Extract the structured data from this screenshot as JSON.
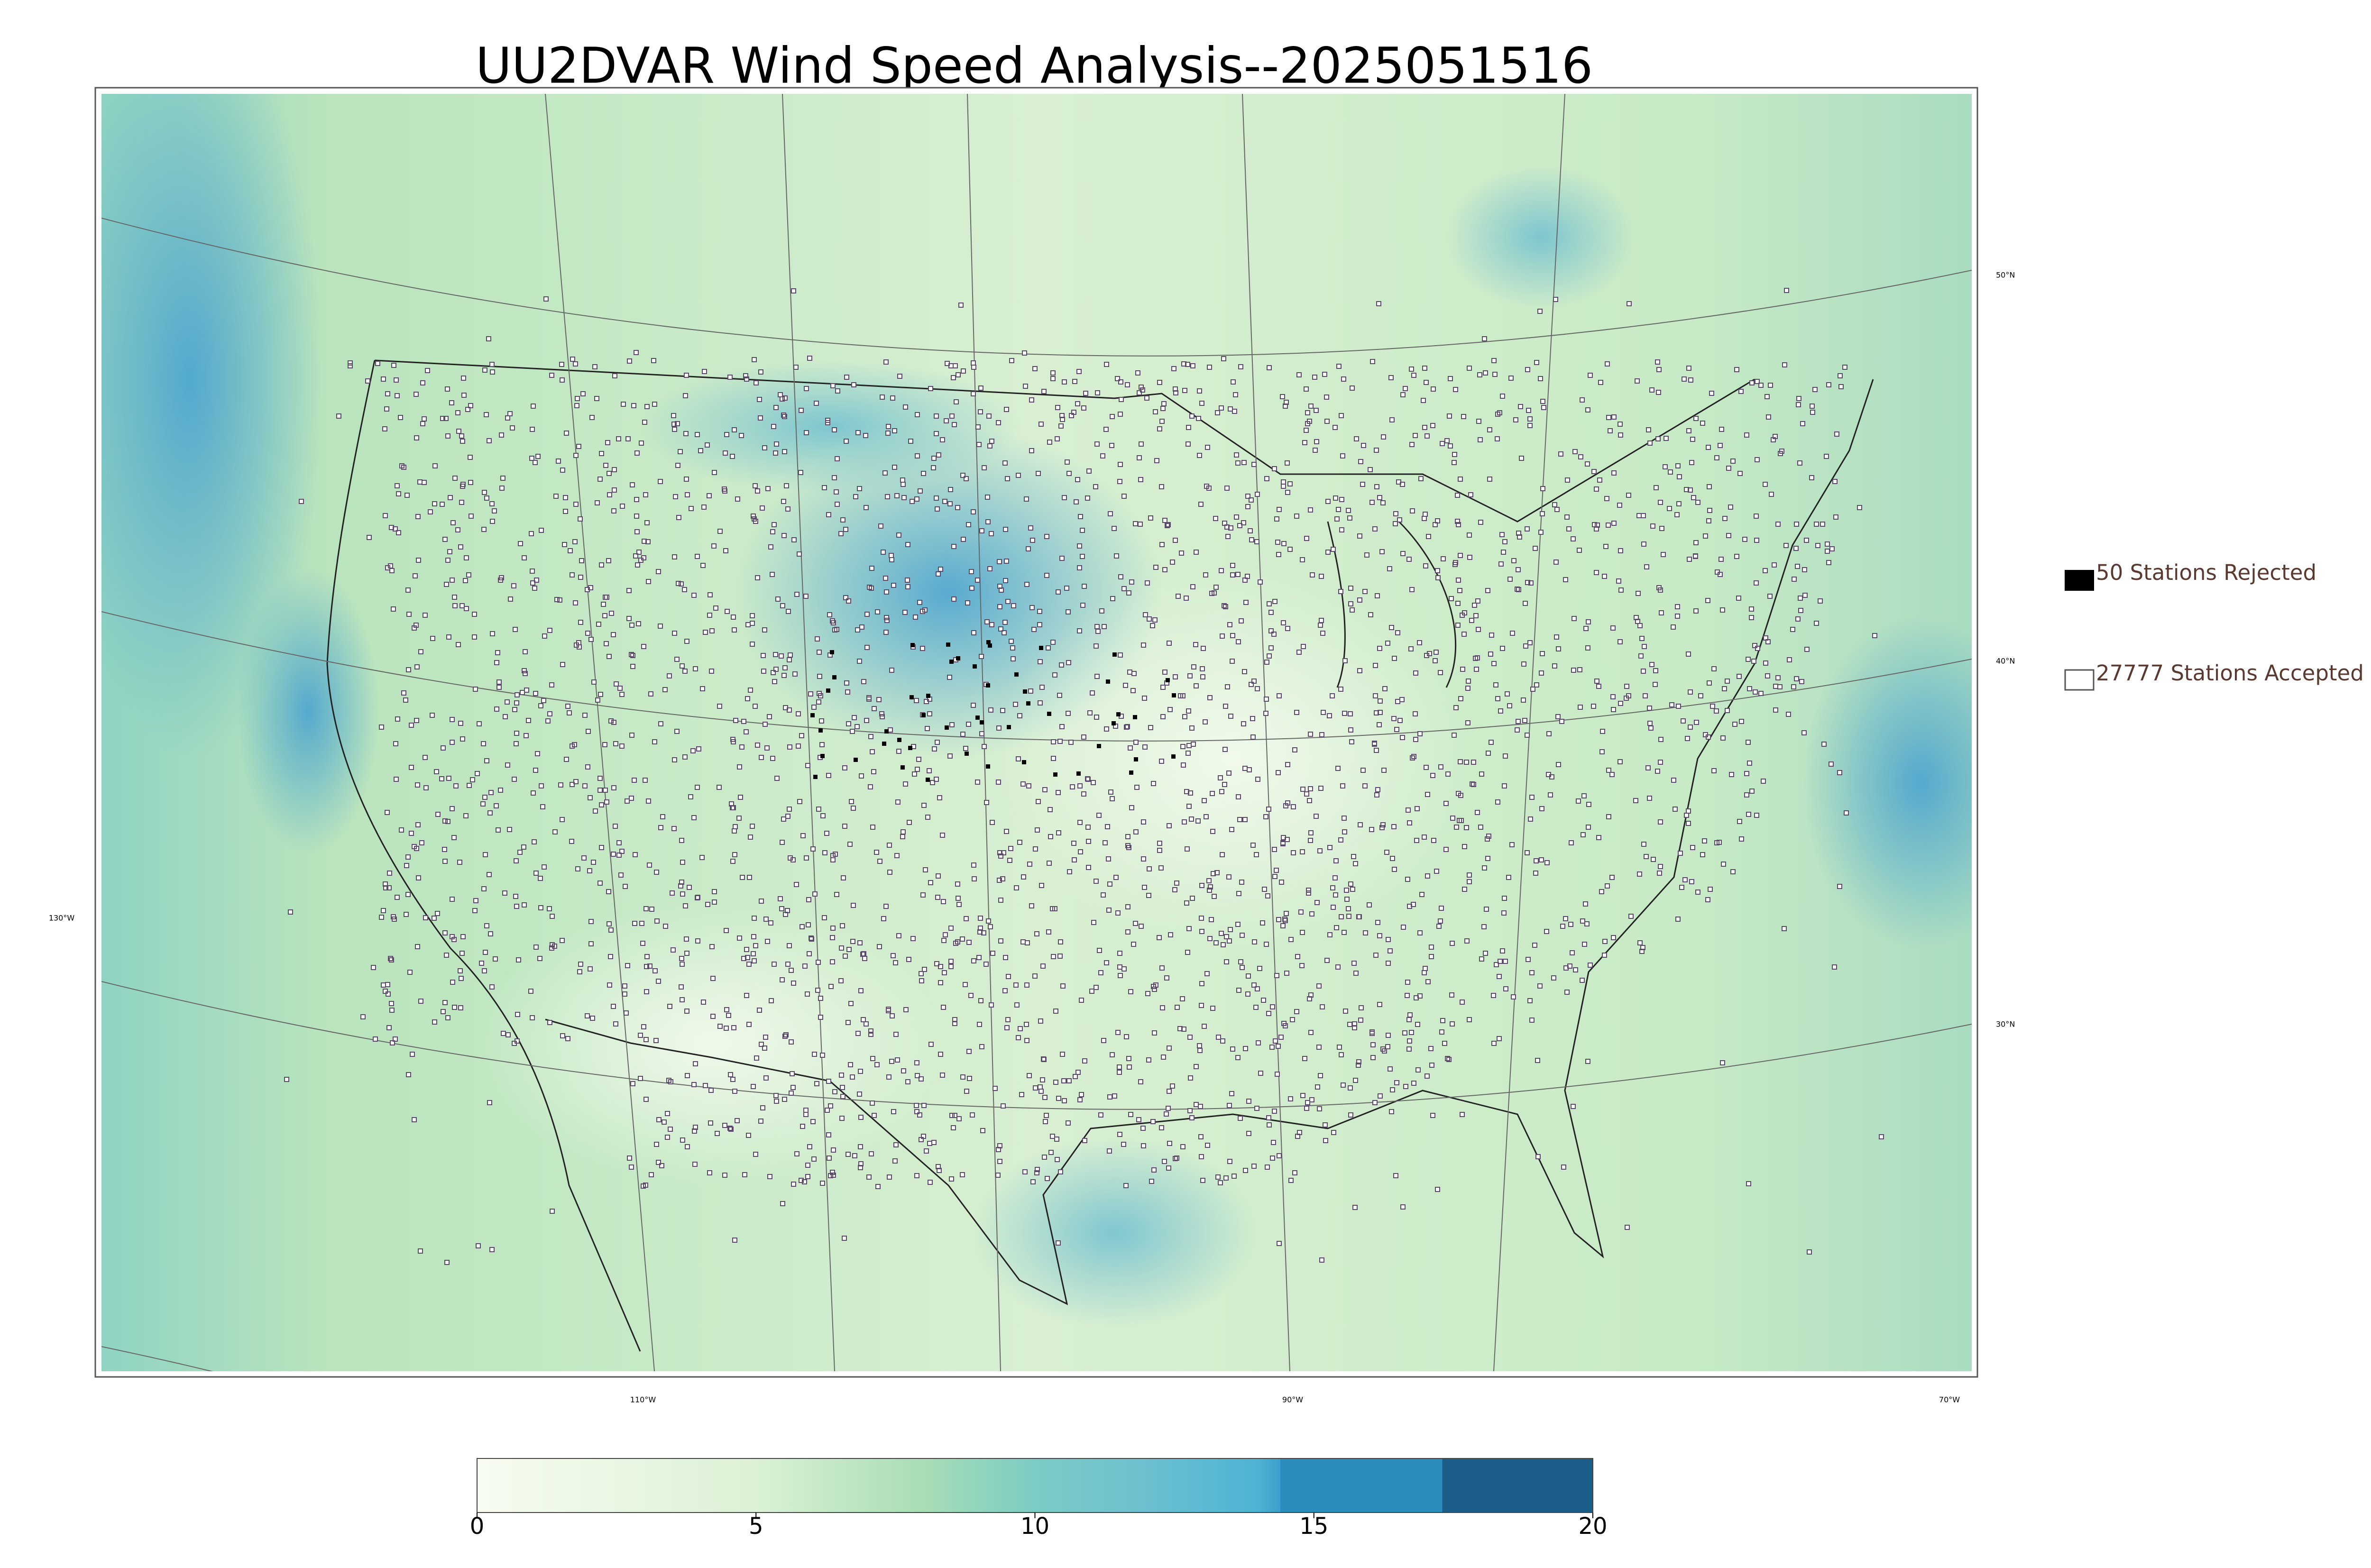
{
  "title": "UU2DVAR Wind Speed Analysis--2025051516",
  "legend": [
    {
      "label": "50 Stations Rejected",
      "color": "#000000"
    },
    {
      "label": "27777 Stations Accepted",
      "color": "#ffffff"
    }
  ],
  "colorbar": {
    "range": [
      0,
      20
    ],
    "ticks": [
      0,
      5,
      10,
      15,
      20
    ]
  },
  "graticule": {
    "latitudes": [
      "50°N",
      "40°N",
      "30°N"
    ],
    "longitudes": [
      "130°W",
      "110°W",
      "90°W",
      "70°W"
    ]
  }
}
